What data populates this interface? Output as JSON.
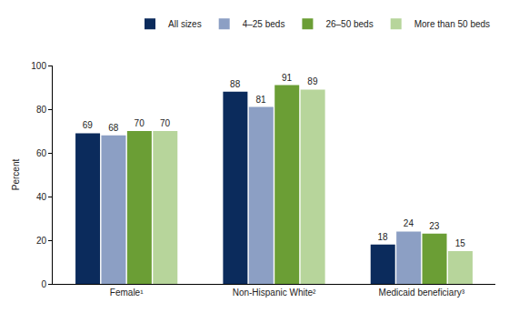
{
  "chart_data": {
    "type": "bar",
    "y_label": "Percent",
    "categories": [
      "Female¹",
      "Non-Hispanic White²",
      "Medicaid beneficiary³"
    ],
    "series": [
      {
        "name": "All sizes",
        "color": "#0b2b5c",
        "values": [
          69,
          88,
          18
        ]
      },
      {
        "name": "4–25 beds",
        "color": "#8c9fc4",
        "values": [
          68,
          81,
          24
        ]
      },
      {
        "name": "26–50 beds",
        "color": "#6b9e35",
        "values": [
          70,
          91,
          23
        ]
      },
      {
        "name": "More than 50 beds",
        "color": "#b7d59b",
        "values": [
          70,
          89,
          15
        ]
      }
    ],
    "ylim": [
      0,
      100
    ],
    "yticks": [
      0,
      20,
      40,
      60,
      80,
      100
    ],
    "grid": false,
    "legend": "top",
    "data_labels": true
  }
}
